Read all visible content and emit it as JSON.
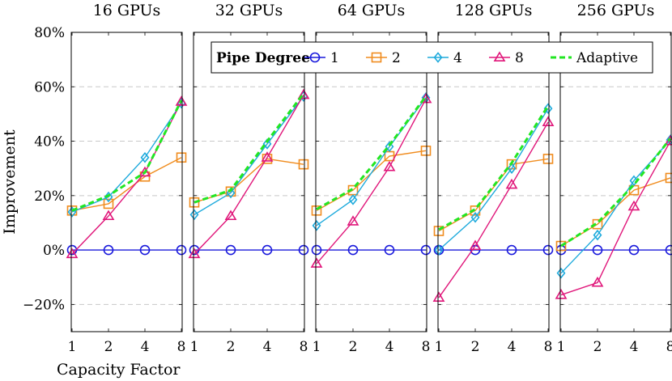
{
  "chart_data": {
    "type": "line",
    "ylabel": "Improvement",
    "xlabel": "Capacity Factor",
    "x": [
      1,
      2,
      4,
      8
    ],
    "x_tick_labels": [
      "1",
      "2",
      "4",
      "8"
    ],
    "ylim": [
      -30,
      80
    ],
    "y_ticks": [
      -20,
      0,
      20,
      40,
      60,
      80
    ],
    "y_tick_labels": [
      "−20%",
      "0%",
      "20%",
      "40%",
      "60%",
      "80%"
    ],
    "grid": "horizontal dashed",
    "legend": {
      "title": "Pipe Degree",
      "placement": "top-right",
      "entries": [
        "1",
        "2",
        "4",
        "8",
        "Adaptive"
      ]
    },
    "series_styles": [
      {
        "key": "1",
        "color": "#1a1adc",
        "marker": "circle"
      },
      {
        "key": "2",
        "color": "#f08c1e",
        "marker": "square"
      },
      {
        "key": "4",
        "color": "#1eaadc",
        "marker": "diamond"
      },
      {
        "key": "8",
        "color": "#e0167a",
        "marker": "triangle"
      },
      {
        "key": "Adaptive",
        "color": "#22e622",
        "marker": "none",
        "dashed": true
      }
    ],
    "panels": [
      {
        "title": "16 GPUs",
        "series": {
          "1": [
            0,
            0,
            0,
            0
          ],
          "2": [
            14.5,
            17,
            27,
            34
          ],
          "4": [
            14,
            19.5,
            34,
            54
          ],
          "8": [
            -1.5,
            12.5,
            28.5,
            54.5
          ],
          "Adaptive": [
            14.5,
            20,
            28.5,
            55
          ]
        }
      },
      {
        "title": "32 GPUs",
        "series": {
          "1": [
            0,
            0,
            0,
            0
          ],
          "2": [
            17.5,
            21.5,
            33.5,
            31.5
          ],
          "4": [
            13,
            21,
            39,
            56.5
          ],
          "8": [
            -1.5,
            12.5,
            34,
            57
          ],
          "Adaptive": [
            17.5,
            22,
            40,
            57.5
          ]
        }
      },
      {
        "title": "64 GPUs",
        "series": {
          "1": [
            0,
            0,
            0,
            0
          ],
          "2": [
            14.5,
            22,
            34.5,
            36.5
          ],
          "4": [
            9,
            18.5,
            38,
            56
          ],
          "8": [
            -5,
            10.5,
            30.5,
            55.5
          ],
          "Adaptive": [
            15,
            22.5,
            38.5,
            56.5
          ]
        }
      },
      {
        "title": "128 GPUs",
        "series": {
          "1": [
            0,
            0,
            0,
            0
          ],
          "2": [
            7,
            14.5,
            31.5,
            33.5
          ],
          "4": [
            0,
            12,
            30,
            52
          ],
          "8": [
            -17.5,
            1.5,
            24,
            47
          ],
          "Adaptive": [
            7.5,
            15,
            32,
            53
          ]
        }
      },
      {
        "title": "256 GPUs",
        "series": {
          "1": [
            0,
            0,
            0,
            0
          ],
          "2": [
            1.5,
            9.5,
            22,
            26.5
          ],
          "4": [
            -8.5,
            5.5,
            25.5,
            40.5
          ],
          "8": [
            -16.5,
            -12,
            16,
            40
          ],
          "Adaptive": [
            1.5,
            10,
            24,
            41
          ]
        }
      }
    ]
  }
}
